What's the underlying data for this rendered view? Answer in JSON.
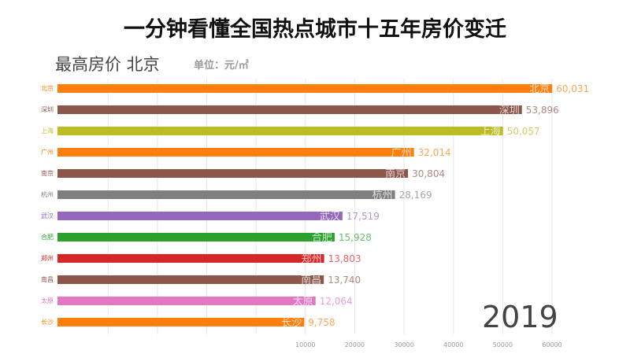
{
  "chart_data": {
    "type": "bar",
    "title": "一分钟看懂全国热点城市十五年房价变迁",
    "subtitle": "最高房价  北京",
    "unit": "单位：元/㎡",
    "year": "2019",
    "orientation": "horizontal",
    "categories": [
      "北京",
      "深圳",
      "上海",
      "广州",
      "南京",
      "杭州",
      "武汉",
      "合肥",
      "郑州",
      "南昌",
      "太原",
      "长沙"
    ],
    "values": [
      60031,
      53896,
      50057,
      32014,
      30804,
      28169,
      17519,
      15928,
      13803,
      13740,
      12064,
      9758
    ],
    "value_labels": [
      "60,031",
      "53,896",
      "50,057",
      "32,014",
      "30,804",
      "28,169",
      "17,519",
      "15,928",
      "13,803",
      "13,740",
      "12,064",
      "9,758"
    ],
    "colors": [
      "#ff7f0e",
      "#8c564b",
      "#bcbd22",
      "#ff7f0e",
      "#8c564b",
      "#7f7f7f",
      "#9467bd",
      "#2ca02c",
      "#d62728",
      "#8c564b",
      "#e377c2",
      "#ff7f0e"
    ],
    "xticks": [
      10000,
      20000,
      30000,
      40000,
      50000,
      60000
    ],
    "xlim": [
      -40250,
      60000
    ],
    "grid": true
  }
}
